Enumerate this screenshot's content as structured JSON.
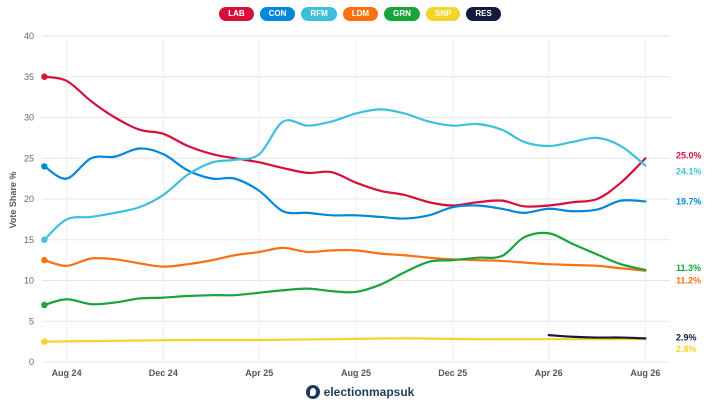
{
  "chart_data": {
    "type": "line",
    "title": "",
    "xlabel": "",
    "ylabel": "Vote Share %",
    "ylim": [
      0,
      40
    ],
    "yticks": [
      0,
      5,
      10,
      15,
      20,
      25,
      30,
      35,
      40
    ],
    "xlim": [
      "2024-07-01",
      "2026-09-01"
    ],
    "xticks": [
      {
        "label": "Aug 24",
        "date": "2024-08-01"
      },
      {
        "label": "Dec 24",
        "date": "2024-12-01"
      },
      {
        "label": "Apr 25",
        "date": "2025-04-01"
      },
      {
        "label": "Aug 25",
        "date": "2025-08-01"
      },
      {
        "label": "Dec 25",
        "date": "2025-12-01"
      },
      {
        "label": "Apr 26",
        "date": "2026-04-01"
      },
      {
        "label": "Aug 26",
        "date": "2026-08-01"
      }
    ],
    "grid": true,
    "legend_position": "top-center",
    "series": [
      {
        "name": "LAB",
        "color": "#d6103b",
        "end_label": "25.0%",
        "points": [
          [
            "2024-07-04",
            35.0
          ],
          [
            "2024-08-01",
            34.5
          ],
          [
            "2024-09-01",
            32.0
          ],
          [
            "2024-10-01",
            30.0
          ],
          [
            "2024-11-01",
            28.5
          ],
          [
            "2024-12-01",
            28.0
          ],
          [
            "2025-01-01",
            26.5
          ],
          [
            "2025-02-01",
            25.5
          ],
          [
            "2025-03-01",
            25.0
          ],
          [
            "2025-04-01",
            24.5
          ],
          [
            "2025-05-01",
            23.8
          ],
          [
            "2025-06-01",
            23.2
          ],
          [
            "2025-07-01",
            23.3
          ],
          [
            "2025-08-01",
            22.0
          ],
          [
            "2025-09-01",
            21.0
          ],
          [
            "2025-10-01",
            20.5
          ],
          [
            "2025-11-01",
            19.6
          ],
          [
            "2025-12-01",
            19.2
          ],
          [
            "2026-01-01",
            19.6
          ],
          [
            "2026-02-01",
            19.8
          ],
          [
            "2026-03-01",
            19.1
          ],
          [
            "2026-04-01",
            19.2
          ],
          [
            "2026-05-01",
            19.6
          ],
          [
            "2026-06-01",
            20.0
          ],
          [
            "2026-07-01",
            22.0
          ],
          [
            "2026-08-01",
            25.0
          ]
        ]
      },
      {
        "name": "CON",
        "color": "#0087dc",
        "end_label": "19.7%",
        "points": [
          [
            "2024-07-04",
            24.0
          ],
          [
            "2024-08-01",
            22.5
          ],
          [
            "2024-09-01",
            25.0
          ],
          [
            "2024-10-01",
            25.2
          ],
          [
            "2024-11-01",
            26.2
          ],
          [
            "2024-12-01",
            25.5
          ],
          [
            "2025-01-01",
            23.5
          ],
          [
            "2025-02-01",
            22.5
          ],
          [
            "2025-03-01",
            22.5
          ],
          [
            "2025-04-01",
            21.0
          ],
          [
            "2025-05-01",
            18.5
          ],
          [
            "2025-06-01",
            18.3
          ],
          [
            "2025-07-01",
            18.0
          ],
          [
            "2025-08-01",
            18.0
          ],
          [
            "2025-09-01",
            17.8
          ],
          [
            "2025-10-01",
            17.6
          ],
          [
            "2025-11-01",
            18.0
          ],
          [
            "2025-12-01",
            19.0
          ],
          [
            "2026-01-01",
            19.2
          ],
          [
            "2026-02-01",
            18.8
          ],
          [
            "2026-03-01",
            18.3
          ],
          [
            "2026-04-01",
            18.8
          ],
          [
            "2026-05-01",
            18.5
          ],
          [
            "2026-06-01",
            18.7
          ],
          [
            "2026-07-01",
            19.8
          ],
          [
            "2026-08-01",
            19.7
          ]
        ]
      },
      {
        "name": "RFM",
        "color": "#3ec0dc",
        "end_label": "24.1%",
        "points": [
          [
            "2024-07-04",
            15.0
          ],
          [
            "2024-08-01",
            17.5
          ],
          [
            "2024-09-01",
            17.8
          ],
          [
            "2024-10-01",
            18.3
          ],
          [
            "2024-11-01",
            19.0
          ],
          [
            "2024-12-01",
            20.5
          ],
          [
            "2025-01-01",
            23.0
          ],
          [
            "2025-02-01",
            24.5
          ],
          [
            "2025-03-01",
            24.8
          ],
          [
            "2025-04-01",
            25.5
          ],
          [
            "2025-05-01",
            29.5
          ],
          [
            "2025-06-01",
            29.0
          ],
          [
            "2025-07-01",
            29.5
          ],
          [
            "2025-08-01",
            30.5
          ],
          [
            "2025-09-01",
            31.0
          ],
          [
            "2025-10-01",
            30.5
          ],
          [
            "2025-11-01",
            29.5
          ],
          [
            "2025-12-01",
            29.0
          ],
          [
            "2026-01-01",
            29.2
          ],
          [
            "2026-02-01",
            28.5
          ],
          [
            "2026-03-01",
            27.0
          ],
          [
            "2026-04-01",
            26.5
          ],
          [
            "2026-05-01",
            27.0
          ],
          [
            "2026-06-01",
            27.5
          ],
          [
            "2026-07-01",
            26.5
          ],
          [
            "2026-08-01",
            24.1
          ]
        ]
      },
      {
        "name": "LDM",
        "color": "#fa7013",
        "end_label": "11.2%",
        "points": [
          [
            "2024-07-04",
            12.5
          ],
          [
            "2024-08-01",
            11.8
          ],
          [
            "2024-09-01",
            12.7
          ],
          [
            "2024-10-01",
            12.6
          ],
          [
            "2024-11-01",
            12.1
          ],
          [
            "2024-12-01",
            11.7
          ],
          [
            "2025-01-01",
            12.0
          ],
          [
            "2025-02-01",
            12.5
          ],
          [
            "2025-03-01",
            13.1
          ],
          [
            "2025-04-01",
            13.5
          ],
          [
            "2025-05-01",
            14.0
          ],
          [
            "2025-06-01",
            13.5
          ],
          [
            "2025-07-01",
            13.7
          ],
          [
            "2025-08-01",
            13.7
          ],
          [
            "2025-09-01",
            13.3
          ],
          [
            "2025-10-01",
            13.1
          ],
          [
            "2025-11-01",
            12.8
          ],
          [
            "2025-12-01",
            12.6
          ],
          [
            "2026-01-01",
            12.5
          ],
          [
            "2026-02-01",
            12.4
          ],
          [
            "2026-03-01",
            12.2
          ],
          [
            "2026-04-01",
            12.0
          ],
          [
            "2026-05-01",
            11.9
          ],
          [
            "2026-06-01",
            11.8
          ],
          [
            "2026-07-01",
            11.5
          ],
          [
            "2026-08-01",
            11.2
          ]
        ]
      },
      {
        "name": "GRN",
        "color": "#19a33c",
        "end_label": "11.3%",
        "points": [
          [
            "2024-07-04",
            7.0
          ],
          [
            "2024-08-01",
            7.7
          ],
          [
            "2024-09-01",
            7.1
          ],
          [
            "2024-10-01",
            7.3
          ],
          [
            "2024-11-01",
            7.8
          ],
          [
            "2024-12-01",
            7.9
          ],
          [
            "2025-01-01",
            8.1
          ],
          [
            "2025-02-01",
            8.2
          ],
          [
            "2025-03-01",
            8.2
          ],
          [
            "2025-04-01",
            8.5
          ],
          [
            "2025-05-01",
            8.8
          ],
          [
            "2025-06-01",
            9.0
          ],
          [
            "2025-07-01",
            8.7
          ],
          [
            "2025-08-01",
            8.6
          ],
          [
            "2025-09-01",
            9.5
          ],
          [
            "2025-10-01",
            11.0
          ],
          [
            "2025-11-01",
            12.3
          ],
          [
            "2025-12-01",
            12.5
          ],
          [
            "2026-01-01",
            12.8
          ],
          [
            "2026-02-01",
            13.0
          ],
          [
            "2026-03-01",
            15.3
          ],
          [
            "2026-04-01",
            15.8
          ],
          [
            "2026-05-01",
            14.5
          ],
          [
            "2026-06-01",
            13.2
          ],
          [
            "2026-07-01",
            12.0
          ],
          [
            "2026-08-01",
            11.3
          ]
        ]
      },
      {
        "name": "SNP",
        "color": "#f4d32a",
        "end_label": "2.8%",
        "points": [
          [
            "2024-07-04",
            2.5
          ],
          [
            "2024-10-01",
            2.6
          ],
          [
            "2025-01-01",
            2.7
          ],
          [
            "2025-04-01",
            2.7
          ],
          [
            "2025-07-01",
            2.8
          ],
          [
            "2025-10-01",
            2.9
          ],
          [
            "2026-01-01",
            2.8
          ],
          [
            "2026-04-01",
            2.8
          ],
          [
            "2026-08-01",
            2.8
          ]
        ]
      },
      {
        "name": "RES",
        "color": "#121b3d",
        "end_label": "2.9%",
        "points": [
          [
            "2026-04-01",
            3.3
          ],
          [
            "2026-05-01",
            3.1
          ],
          [
            "2026-06-01",
            3.0
          ],
          [
            "2026-07-01",
            3.0
          ],
          [
            "2026-08-01",
            2.9
          ]
        ]
      }
    ]
  },
  "footer": {
    "brand": "electionmapsuk"
  }
}
